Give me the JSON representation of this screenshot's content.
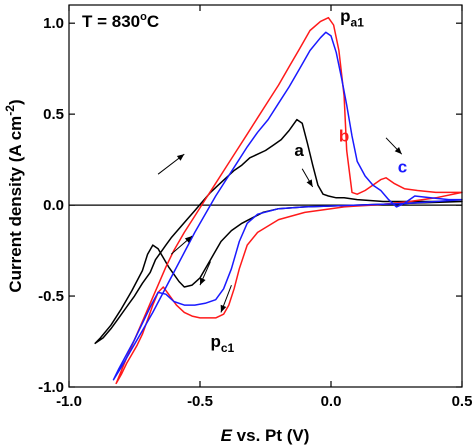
{
  "chart_data": {
    "type": "line",
    "title": "",
    "annotation_title": "T = 830",
    "annotation_title_sup": "o",
    "annotation_title_unit": "C",
    "xlabel_italic": "E",
    "xlabel_rest": " vs. Pt (V)",
    "ylabel_main": "Current density (A cm",
    "ylabel_sup": "-2",
    "ylabel_close": ")",
    "xlim": [
      -1.0,
      0.5
    ],
    "ylim": [
      -1.0,
      1.1
    ],
    "xticks": [
      -1.0,
      -0.5,
      0.0,
      0.5
    ],
    "xtick_labels": [
      "-1.0",
      "-0.5",
      "0.0",
      "0.5"
    ],
    "yticks": [
      -1.0,
      -0.5,
      0.0,
      0.5,
      1.0
    ],
    "ytick_labels": [
      "-1.0",
      "-0.5",
      "0.0",
      "0.5",
      "1.0"
    ],
    "zero_line": true,
    "series": [
      {
        "name": "a",
        "color": "#000000",
        "x": [
          -0.9,
          -0.87,
          -0.84,
          -0.81,
          -0.78,
          -0.75,
          -0.72,
          -0.69,
          -0.67,
          -0.65,
          -0.63,
          -0.61,
          -0.58,
          -0.55,
          -0.52,
          -0.49,
          -0.46,
          -0.43,
          -0.4,
          -0.37,
          -0.34,
          -0.31,
          -0.28,
          -0.25,
          -0.22,
          -0.19,
          -0.16,
          -0.13,
          -0.11,
          -0.09,
          -0.07,
          -0.05,
          -0.03,
          -0.01,
          0.02,
          0.05,
          0.1,
          0.2,
          0.3,
          0.4,
          0.5,
          0.4,
          0.3,
          0.2,
          0.1,
          0.0,
          -0.1,
          -0.2,
          -0.26,
          -0.3,
          -0.34,
          -0.38,
          -0.42,
          -0.46,
          -0.5,
          -0.53,
          -0.56,
          -0.58,
          -0.6,
          -0.62,
          -0.64,
          -0.66,
          -0.68,
          -0.7,
          -0.72,
          -0.76,
          -0.8,
          -0.84,
          -0.88,
          -0.9
        ],
        "y": [
          -0.76,
          -0.73,
          -0.68,
          -0.62,
          -0.56,
          -0.5,
          -0.43,
          -0.37,
          -0.3,
          -0.26,
          -0.22,
          -0.18,
          -0.13,
          -0.08,
          -0.03,
          0.02,
          0.07,
          0.11,
          0.15,
          0.19,
          0.22,
          0.26,
          0.28,
          0.3,
          0.33,
          0.36,
          0.41,
          0.47,
          0.45,
          0.34,
          0.22,
          0.11,
          0.06,
          0.05,
          0.04,
          0.04,
          0.03,
          0.02,
          0.02,
          0.02,
          0.02,
          0.015,
          0.01,
          0.005,
          0.0,
          -0.005,
          -0.01,
          -0.02,
          -0.04,
          -0.07,
          -0.1,
          -0.14,
          -0.2,
          -0.3,
          -0.4,
          -0.44,
          -0.45,
          -0.42,
          -0.38,
          -0.34,
          -0.29,
          -0.24,
          -0.22,
          -0.27,
          -0.36,
          -0.47,
          -0.57,
          -0.66,
          -0.73,
          -0.76
        ]
      },
      {
        "name": "b",
        "color": "#ff1a1a",
        "x": [
          -0.82,
          -0.8,
          -0.78,
          -0.75,
          -0.72,
          -0.69,
          -0.66,
          -0.63,
          -0.6,
          -0.56,
          -0.52,
          -0.48,
          -0.44,
          -0.4,
          -0.36,
          -0.32,
          -0.28,
          -0.24,
          -0.2,
          -0.16,
          -0.12,
          -0.08,
          -0.04,
          -0.01,
          0.01,
          0.03,
          0.05,
          0.06,
          0.08,
          0.1,
          0.13,
          0.16,
          0.19,
          0.21,
          0.24,
          0.28,
          0.33,
          0.4,
          0.5,
          0.4,
          0.3,
          0.24,
          0.2,
          0.16,
          0.1,
          0.05,
          0.0,
          -0.1,
          -0.2,
          -0.28,
          -0.32,
          -0.35,
          -0.37,
          -0.39,
          -0.41,
          -0.44,
          -0.47,
          -0.5,
          -0.53,
          -0.56,
          -0.59,
          -0.62,
          -0.64,
          -0.66,
          -0.68,
          -0.7,
          -0.72,
          -0.74,
          -0.76,
          -0.78,
          -0.8,
          -0.82
        ],
        "y": [
          -0.98,
          -0.91,
          -0.84,
          -0.74,
          -0.64,
          -0.54,
          -0.44,
          -0.34,
          -0.25,
          -0.15,
          -0.06,
          0.03,
          0.12,
          0.21,
          0.3,
          0.39,
          0.48,
          0.57,
          0.66,
          0.76,
          0.86,
          0.96,
          1.01,
          1.03,
          0.99,
          0.85,
          0.6,
          0.3,
          0.07,
          0.06,
          0.08,
          0.11,
          0.14,
          0.15,
          0.12,
          0.09,
          0.08,
          0.07,
          0.07,
          0.04,
          0.02,
          0.01,
          0.005,
          0.0,
          -0.005,
          -0.01,
          -0.02,
          -0.04,
          -0.08,
          -0.15,
          -0.22,
          -0.35,
          -0.46,
          -0.55,
          -0.6,
          -0.62,
          -0.62,
          -0.62,
          -0.61,
          -0.59,
          -0.55,
          -0.49,
          -0.45,
          -0.48,
          -0.55,
          -0.63,
          -0.71,
          -0.77,
          -0.82,
          -0.87,
          -0.93,
          -0.98
        ]
      },
      {
        "name": "c",
        "color": "#1a1aff",
        "x": [
          -0.83,
          -0.8,
          -0.76,
          -0.72,
          -0.68,
          -0.64,
          -0.6,
          -0.56,
          -0.52,
          -0.48,
          -0.44,
          -0.4,
          -0.36,
          -0.32,
          -0.28,
          -0.24,
          -0.2,
          -0.16,
          -0.12,
          -0.08,
          -0.04,
          -0.02,
          0.0,
          0.02,
          0.04,
          0.06,
          0.08,
          0.1,
          0.13,
          0.16,
          0.19,
          0.22,
          0.25,
          0.28,
          0.32,
          0.38,
          0.45,
          0.5,
          0.4,
          0.3,
          0.2,
          0.1,
          0.0,
          -0.1,
          -0.2,
          -0.28,
          -0.32,
          -0.35,
          -0.38,
          -0.41,
          -0.44,
          -0.48,
          -0.52,
          -0.56,
          -0.6,
          -0.63,
          -0.66,
          -0.69,
          -0.72,
          -0.75,
          -0.78,
          -0.81,
          -0.83
        ],
        "y": [
          -0.96,
          -0.89,
          -0.79,
          -0.69,
          -0.59,
          -0.48,
          -0.37,
          -0.26,
          -0.15,
          -0.05,
          0.05,
          0.14,
          0.23,
          0.32,
          0.4,
          0.47,
          0.56,
          0.65,
          0.75,
          0.85,
          0.92,
          0.95,
          0.93,
          0.84,
          0.7,
          0.55,
          0.38,
          0.24,
          0.16,
          0.11,
          0.08,
          0.03,
          -0.01,
          0.01,
          0.05,
          0.04,
          0.03,
          0.03,
          0.02,
          0.01,
          0.005,
          0.0,
          -0.005,
          -0.01,
          -0.02,
          -0.05,
          -0.1,
          -0.2,
          -0.35,
          -0.46,
          -0.52,
          -0.54,
          -0.55,
          -0.55,
          -0.53,
          -0.49,
          -0.48,
          -0.56,
          -0.65,
          -0.74,
          -0.82,
          -0.9,
          -0.96
        ]
      }
    ],
    "labels": [
      {
        "text": "a",
        "color": "#000000",
        "x": -0.14,
        "y": 0.27
      },
      {
        "text": "b",
        "color": "#ff1a1a",
        "x": 0.03,
        "y": 0.35
      },
      {
        "text": "c",
        "color": "#1a1aff",
        "x": 0.255,
        "y": 0.18
      },
      {
        "text": "p",
        "sub": "a1",
        "color": "#000000",
        "x": 0.035,
        "y": 1.01
      },
      {
        "text": "p",
        "sub": "c1",
        "color": "#000000",
        "x": -0.46,
        "y": -0.78
      }
    ],
    "arrows": [
      {
        "from": [
          -0.61,
          -0.27
        ],
        "to": [
          -0.53,
          -0.17
        ]
      },
      {
        "from": [
          -0.66,
          0.17
        ],
        "to": [
          -0.56,
          0.28
        ]
      },
      {
        "from": [
          -0.46,
          -0.31
        ],
        "to": [
          -0.5,
          -0.44
        ]
      },
      {
        "from": [
          -0.38,
          -0.44
        ],
        "to": [
          -0.42,
          -0.59
        ]
      },
      {
        "from": [
          -0.11,
          0.2
        ],
        "to": [
          -0.07,
          0.1
        ]
      },
      {
        "from": [
          0.21,
          0.37
        ],
        "to": [
          0.27,
          0.28
        ]
      }
    ]
  }
}
